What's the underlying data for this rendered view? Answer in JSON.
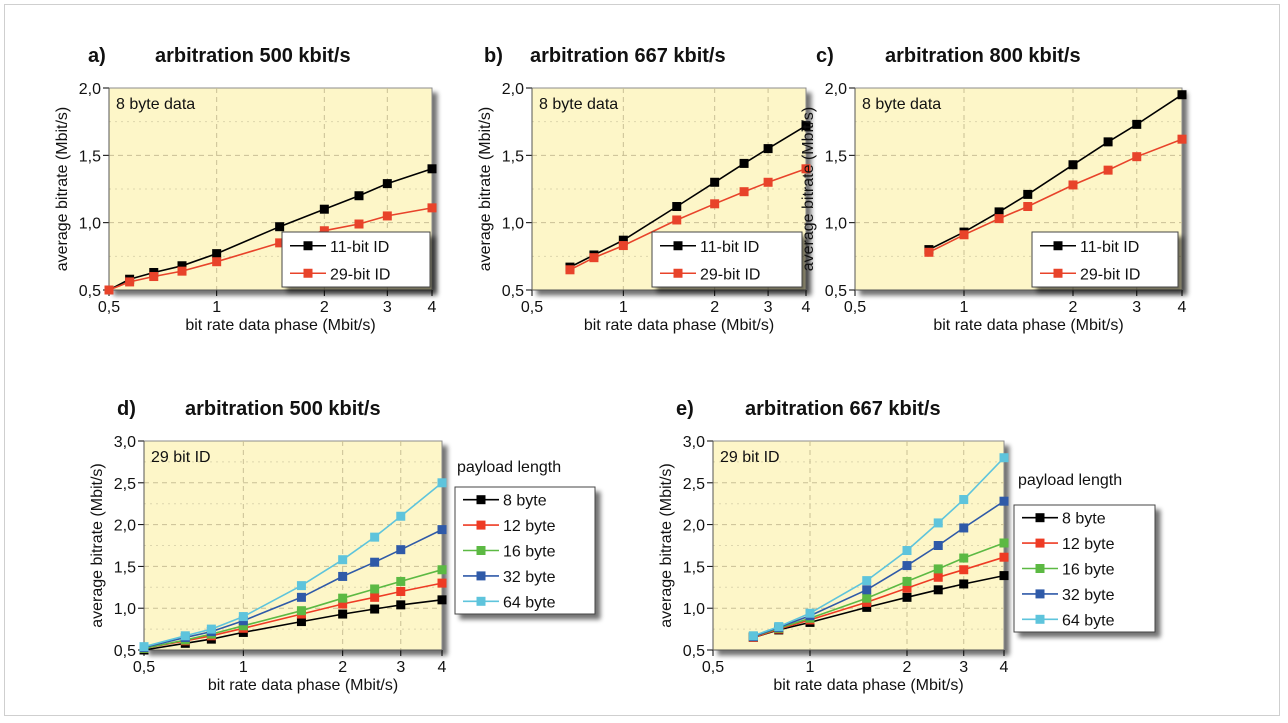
{
  "chart_data": [
    {
      "type": "line",
      "panel_label": "a)",
      "title": "arbitration 500 kbit/s",
      "xlabel": "bit rate data phase (Mbit/s)",
      "ylabel": "average bitrate (Mbit/s)",
      "annotation": "8 byte data",
      "scale": "log-x",
      "xlim": [
        0.5,
        4
      ],
      "ylim": [
        0.5,
        2.0
      ],
      "xticks": [
        {
          "v": 0.5,
          "l": "0,5"
        },
        {
          "v": 1,
          "l": "1"
        },
        {
          "v": 2,
          "l": "2"
        },
        {
          "v": 3,
          "l": "3"
        },
        {
          "v": 4,
          "l": "4"
        }
      ],
      "yticks": [
        {
          "v": 0.5,
          "l": "0,5"
        },
        {
          "v": 1.0,
          "l": "1,0"
        },
        {
          "v": 1.5,
          "l": "1,5"
        },
        {
          "v": 2.0,
          "l": "2,0"
        }
      ],
      "x": [
        0.5,
        0.571,
        0.667,
        0.8,
        1,
        1.5,
        2,
        2.5,
        3,
        4
      ],
      "series": [
        {
          "name": "11-bit ID",
          "color": "#000000",
          "values": [
            0.5,
            0.58,
            0.63,
            0.68,
            0.77,
            0.97,
            1.1,
            1.2,
            1.29,
            1.4
          ]
        },
        {
          "name": "29-bit ID",
          "color": "#e8432a",
          "values": [
            0.5,
            0.56,
            0.6,
            0.64,
            0.71,
            0.85,
            0.94,
            0.99,
            1.05,
            1.11
          ]
        }
      ],
      "legend": {
        "position": "bottom-right"
      }
    },
    {
      "type": "line",
      "panel_label": "b)",
      "title": "arbitration 667 kbit/s",
      "xlabel": "bit rate data phase (Mbit/s)",
      "ylabel": "average bitrate (Mbit/s)",
      "annotation": "8 byte data",
      "scale": "log-x",
      "xlim": [
        0.5,
        4
      ],
      "ylim": [
        0.5,
        2.0
      ],
      "xticks": [
        {
          "v": 0.5,
          "l": "0,5"
        },
        {
          "v": 1,
          "l": "1"
        },
        {
          "v": 2,
          "l": "2"
        },
        {
          "v": 3,
          "l": "3"
        },
        {
          "v": 4,
          "l": "4"
        }
      ],
      "yticks": [
        {
          "v": 0.5,
          "l": "0,5"
        },
        {
          "v": 1.0,
          "l": "1,0"
        },
        {
          "v": 1.5,
          "l": "1,5"
        },
        {
          "v": 2.0,
          "l": "2,0"
        }
      ],
      "x": [
        0.667,
        0.8,
        1,
        1.5,
        2,
        2.5,
        3,
        4
      ],
      "series": [
        {
          "name": "11-bit ID",
          "color": "#000000",
          "values": [
            0.67,
            0.76,
            0.87,
            1.12,
            1.3,
            1.44,
            1.55,
            1.72
          ]
        },
        {
          "name": "29-bit ID",
          "color": "#e8432a",
          "values": [
            0.65,
            0.74,
            0.83,
            1.02,
            1.14,
            1.23,
            1.3,
            1.4
          ]
        }
      ],
      "legend": {
        "position": "bottom-right"
      }
    },
    {
      "type": "line",
      "panel_label": "c)",
      "title": "arbitration 800 kbit/s",
      "xlabel": "bit rate data phase (Mbit/s)",
      "ylabel": "average bitrate (Mbit/s)",
      "annotation": "8 byte data",
      "scale": "log-x",
      "xlim": [
        0.5,
        4
      ],
      "ylim": [
        0.5,
        2.0
      ],
      "xticks": [
        {
          "v": 0.5,
          "l": "0,5"
        },
        {
          "v": 1,
          "l": "1"
        },
        {
          "v": 2,
          "l": "2"
        },
        {
          "v": 3,
          "l": "3"
        },
        {
          "v": 4,
          "l": "4"
        }
      ],
      "yticks": [
        {
          "v": 0.5,
          "l": "0,5"
        },
        {
          "v": 1.0,
          "l": "1,0"
        },
        {
          "v": 1.5,
          "l": "1,5"
        },
        {
          "v": 2.0,
          "l": "2,0"
        }
      ],
      "x": [
        0.8,
        1,
        1.25,
        1.5,
        2,
        2.5,
        3,
        4
      ],
      "series": [
        {
          "name": "11-bit ID",
          "color": "#000000",
          "values": [
            0.8,
            0.93,
            1.08,
            1.21,
            1.43,
            1.6,
            1.73,
            1.95
          ]
        },
        {
          "name": "29-bit ID",
          "color": "#e8432a",
          "values": [
            0.78,
            0.91,
            1.03,
            1.12,
            1.28,
            1.39,
            1.49,
            1.62
          ]
        }
      ],
      "legend": {
        "position": "bottom-right"
      }
    },
    {
      "type": "line",
      "panel_label": "d)",
      "title": "arbitration 500 kbit/s",
      "xlabel": "bit rate data phase (Mbit/s)",
      "ylabel": "average bitrate (Mbit/s)",
      "annotation": "29 bit ID",
      "legend_title": "payload length",
      "scale": "log-x",
      "xlim": [
        0.5,
        4
      ],
      "ylim": [
        0.5,
        3.0
      ],
      "xticks": [
        {
          "v": 0.5,
          "l": "0,5"
        },
        {
          "v": 1,
          "l": "1"
        },
        {
          "v": 2,
          "l": "2"
        },
        {
          "v": 3,
          "l": "3"
        },
        {
          "v": 4,
          "l": "4"
        }
      ],
      "yticks": [
        {
          "v": 0.5,
          "l": "0,5"
        },
        {
          "v": 1.0,
          "l": "1,0"
        },
        {
          "v": 1.5,
          "l": "1,5"
        },
        {
          "v": 2.0,
          "l": "2,0"
        },
        {
          "v": 2.5,
          "l": "2,5"
        },
        {
          "v": 3.0,
          "l": "3,0"
        }
      ],
      "x": [
        0.5,
        0.667,
        0.8,
        1,
        1.5,
        2,
        2.5,
        3,
        4
      ],
      "series": [
        {
          "name": "8 byte",
          "color": "#000000",
          "values": [
            0.5,
            0.58,
            0.63,
            0.71,
            0.84,
            0.93,
            0.99,
            1.04,
            1.1
          ]
        },
        {
          "name": "12 byte",
          "color": "#ee3b24",
          "values": [
            0.52,
            0.61,
            0.67,
            0.76,
            0.93,
            1.05,
            1.13,
            1.2,
            1.3
          ]
        },
        {
          "name": "16 byte",
          "color": "#5cb943",
          "values": [
            0.52,
            0.62,
            0.69,
            0.79,
            0.97,
            1.12,
            1.23,
            1.32,
            1.46
          ]
        },
        {
          "name": "32 byte",
          "color": "#2f5aa8",
          "values": [
            0.53,
            0.65,
            0.72,
            0.85,
            1.13,
            1.38,
            1.55,
            1.7,
            1.94
          ]
        },
        {
          "name": "64 byte",
          "color": "#5ec4dc",
          "values": [
            0.54,
            0.67,
            0.75,
            0.9,
            1.27,
            1.58,
            1.85,
            2.1,
            2.5
          ]
        }
      ],
      "legend": {
        "position": "right-outside"
      }
    },
    {
      "type": "line",
      "panel_label": "e)",
      "title": "arbitration 667 kbit/s",
      "xlabel": "bit rate data phase (Mbit/s)",
      "ylabel": "average bitrate (Mbit/s)",
      "annotation": "29 bit ID",
      "legend_title": "payload length",
      "scale": "log-x",
      "xlim": [
        0.5,
        4
      ],
      "ylim": [
        0.5,
        3.0
      ],
      "xticks": [
        {
          "v": 0.5,
          "l": "0,5"
        },
        {
          "v": 1,
          "l": "1"
        },
        {
          "v": 2,
          "l": "2"
        },
        {
          "v": 3,
          "l": "3"
        },
        {
          "v": 4,
          "l": "4"
        }
      ],
      "yticks": [
        {
          "v": 0.5,
          "l": "0,5"
        },
        {
          "v": 1.0,
          "l": "1,0"
        },
        {
          "v": 1.5,
          "l": "1,5"
        },
        {
          "v": 2.0,
          "l": "2,0"
        },
        {
          "v": 2.5,
          "l": "2,5"
        },
        {
          "v": 3.0,
          "l": "3,0"
        }
      ],
      "x": [
        0.667,
        0.8,
        1,
        1.5,
        2,
        2.5,
        3,
        4
      ],
      "series": [
        {
          "name": "8 byte",
          "color": "#000000",
          "values": [
            0.65,
            0.74,
            0.83,
            1.01,
            1.13,
            1.22,
            1.29,
            1.39
          ]
        },
        {
          "name": "12 byte",
          "color": "#ee3b24",
          "values": [
            0.65,
            0.75,
            0.86,
            1.07,
            1.24,
            1.37,
            1.46,
            1.61
          ]
        },
        {
          "name": "16 byte",
          "color": "#5cb943",
          "values": [
            0.66,
            0.76,
            0.88,
            1.12,
            1.32,
            1.47,
            1.6,
            1.78
          ]
        },
        {
          "name": "32 byte",
          "color": "#2f5aa8",
          "values": [
            0.66,
            0.77,
            0.91,
            1.22,
            1.51,
            1.75,
            1.96,
            2.28
          ]
        },
        {
          "name": "64 byte",
          "color": "#5ec4dc",
          "values": [
            0.67,
            0.78,
            0.94,
            1.33,
            1.69,
            2.02,
            2.3,
            2.8
          ]
        }
      ],
      "legend": {
        "position": "right-outside"
      }
    }
  ]
}
